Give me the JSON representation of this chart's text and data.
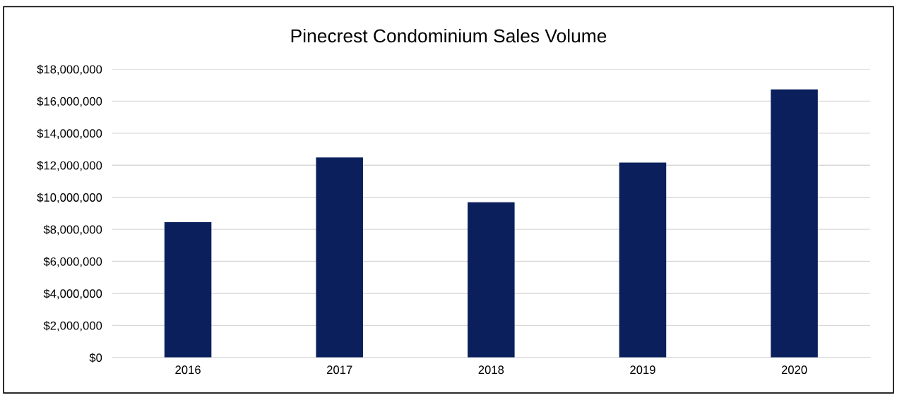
{
  "chart_data": {
    "type": "bar",
    "title": "Pinecrest Condominium Sales Volume",
    "categories": [
      "2016",
      "2017",
      "2018",
      "2019",
      "2020"
    ],
    "values": [
      8450000,
      12480000,
      9690000,
      12170000,
      16730000
    ],
    "color": "#0a1f5c",
    "ylim": [
      0,
      18000000
    ],
    "yticks": [
      {
        "value": 0,
        "label": "$0"
      },
      {
        "value": 2000000,
        "label": "$2,000,000"
      },
      {
        "value": 4000000,
        "label": "$4,000,000"
      },
      {
        "value": 6000000,
        "label": "$6,000,000"
      },
      {
        "value": 8000000,
        "label": "$8,000,000"
      },
      {
        "value": 10000000,
        "label": "$10,000,000"
      },
      {
        "value": 12000000,
        "label": "$12,000,000"
      },
      {
        "value": 14000000,
        "label": "$14,000,000"
      },
      {
        "value": 16000000,
        "label": "$16,000,000"
      },
      {
        "value": 18000000,
        "label": "$18,000,000"
      }
    ],
    "grid": "y",
    "legend": false
  }
}
